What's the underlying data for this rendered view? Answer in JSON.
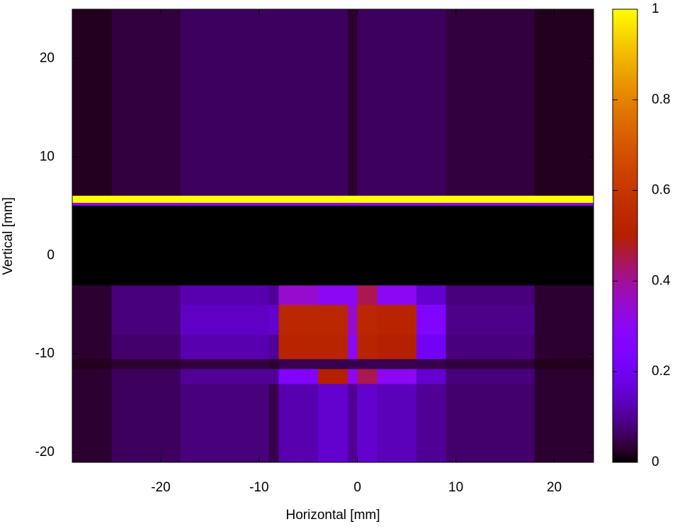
{
  "chart_data": {
    "type": "heatmap",
    "x_label": "Horizontal [mm]",
    "y_label": "Vertical [mm]",
    "xlim": [
      -29,
      24
    ],
    "ylim": [
      -21,
      25
    ],
    "xticks": [
      -20,
      -10,
      0,
      10,
      20
    ],
    "yticks": [
      -20,
      -10,
      0,
      10,
      20
    ],
    "zlim": [
      0,
      1
    ],
    "zticks": [
      0,
      0.2,
      0.4,
      0.6,
      0.8,
      1
    ],
    "x_edges": [
      -29,
      -25,
      -18,
      -9,
      -8,
      -4,
      -1,
      0,
      2,
      6,
      9,
      18,
      24
    ],
    "y_edges": [
      -21,
      -13,
      -11.5,
      -10.5,
      -8,
      -5,
      -3,
      5.1,
      5.4,
      6.1,
      25
    ],
    "z": [
      [
        0.03,
        0.06,
        0.08,
        0.05,
        0.12,
        0.15,
        0.1,
        0.15,
        0.13,
        0.1,
        0.07,
        0.03
      ],
      [
        0.03,
        0.06,
        0.1,
        0.1,
        0.25,
        0.5,
        0.3,
        0.45,
        0.3,
        0.15,
        0.08,
        0.03
      ],
      [
        0.02,
        0.03,
        0.04,
        0.03,
        0.05,
        0.05,
        0.05,
        0.05,
        0.05,
        0.05,
        0.04,
        0.02
      ],
      [
        0.03,
        0.07,
        0.12,
        0.1,
        0.52,
        0.52,
        0.3,
        0.52,
        0.5,
        0.2,
        0.08,
        0.03
      ],
      [
        0.03,
        0.08,
        0.14,
        0.15,
        0.53,
        0.53,
        0.35,
        0.53,
        0.52,
        0.25,
        0.09,
        0.03
      ],
      [
        0.03,
        0.08,
        0.12,
        0.1,
        0.35,
        0.3,
        0.3,
        0.45,
        0.3,
        0.15,
        0.08,
        0.03
      ],
      [
        0,
        0,
        0,
        0,
        0,
        0,
        0,
        0,
        0,
        0,
        0,
        0
      ],
      [
        0.3,
        0.3,
        0.3,
        0.3,
        0.3,
        0.3,
        0.3,
        0.3,
        0.3,
        0.3,
        0.3,
        0.3
      ],
      [
        1,
        1,
        1,
        1,
        1,
        1,
        1,
        1,
        1,
        1,
        1,
        1
      ],
      [
        0.02,
        0.04,
        0.06,
        0.06,
        0.06,
        0.06,
        0.03,
        0.06,
        0.06,
        0.06,
        0.04,
        0.02
      ]
    ]
  }
}
